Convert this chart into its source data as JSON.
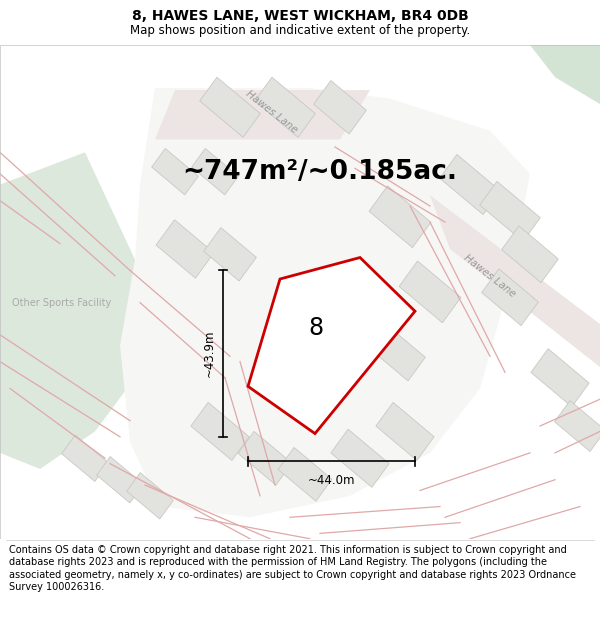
{
  "title": "8, HAWES LANE, WEST WICKHAM, BR4 0DB",
  "subtitle": "Map shows position and indicative extent of the property.",
  "area_text": "~747m²/~0.185ac.",
  "property_number": "8",
  "dim_width": "~44.0m",
  "dim_height": "~43.9m",
  "label_hawes_lane_1": "Hawes Lane",
  "label_hawes_lane_2": "Hawes Lane",
  "label_sports": "Other Sports Facility",
  "footer": "Contains OS data © Crown copyright and database right 2021. This information is subject to Crown copyright and database rights 2023 and is reproduced with the permission of HM Land Registry. The polygons (including the associated geometry, namely x, y co-ordinates) are subject to Crown copyright and database rights 2023 Ordnance Survey 100026316.",
  "map_bg": "#f0f0ee",
  "white_area": "#f8f8f6",
  "green_fill": "#dce8dc",
  "green_fill2": "#d4e4d4",
  "road_fill": "#ede4e4",
  "road_line": "#e0a8a8",
  "building_fill": "#e2e2de",
  "building_stroke": "#c8c8c4",
  "prop_fill": "#ffffff",
  "prop_stroke": "#cc0000",
  "title_fontsize": 10,
  "subtitle_fontsize": 8.5,
  "area_fontsize": 19,
  "footer_fontsize": 7.0,
  "number_fontsize": 17,
  "road_label_fontsize": 7.5,
  "sports_fontsize": 7.0,
  "dim_fontsize": 8.5
}
